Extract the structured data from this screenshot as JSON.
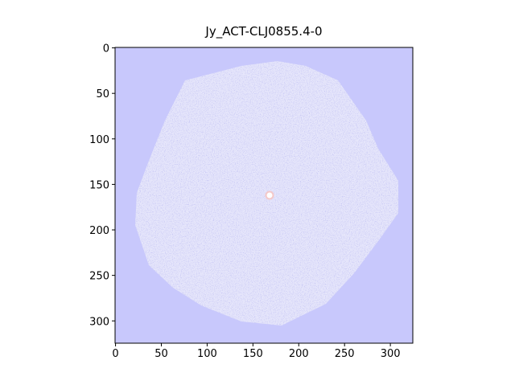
{
  "chart_data": {
    "type": "image",
    "title": "Jy_ACT-CLJ0855.4-0",
    "xlim": [
      -0.5,
      324.5
    ],
    "ylim": [
      324.5,
      -0.5
    ],
    "xticks": [
      0,
      50,
      100,
      150,
      200,
      250,
      300
    ],
    "yticks": [
      0,
      50,
      100,
      150,
      200,
      250,
      300
    ],
    "background_color": "#c8c8fc"
  }
}
